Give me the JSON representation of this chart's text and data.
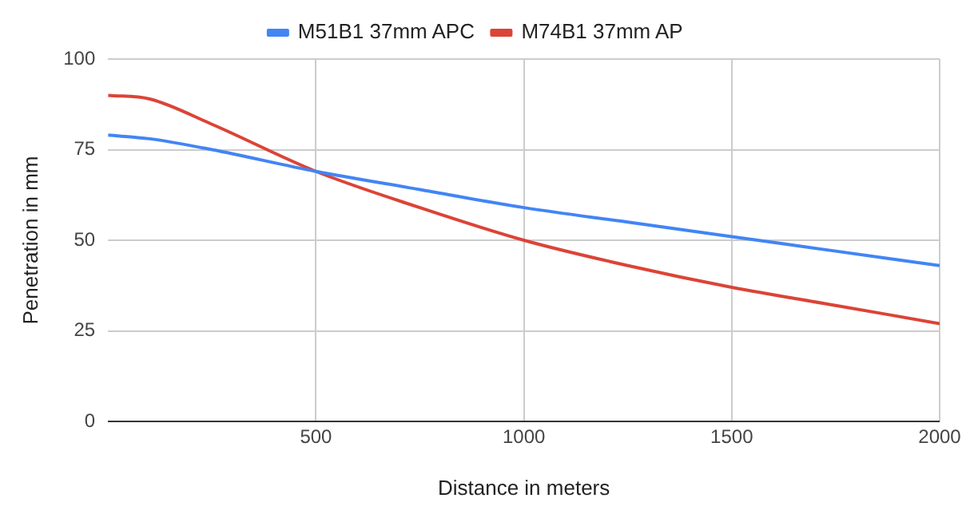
{
  "chart_data": {
    "type": "line",
    "xlabel": "Distance in meters",
    "ylabel": "Penetration in mm",
    "x": [
      0,
      100,
      250,
      500,
      750,
      1000,
      1250,
      1500,
      1750,
      2000
    ],
    "series": [
      {
        "name": "M51B1 37mm APC",
        "color": "#4285f4",
        "values": [
          79,
          78,
          75,
          69,
          64,
          59,
          55,
          51,
          47,
          43
        ]
      },
      {
        "name": "M74B1 37mm AP",
        "color": "#db4437",
        "values": [
          90,
          89,
          82,
          69,
          59,
          50,
          43,
          37,
          32,
          27
        ]
      }
    ],
    "xlim": [
      0,
      2000
    ],
    "xticks": [
      500,
      1000,
      1500,
      2000
    ],
    "ylim": [
      0,
      100
    ],
    "yticks": [
      0,
      25,
      50,
      75,
      100
    ],
    "grid": true,
    "legend": "top",
    "marker": "none",
    "line_style": "solid"
  }
}
